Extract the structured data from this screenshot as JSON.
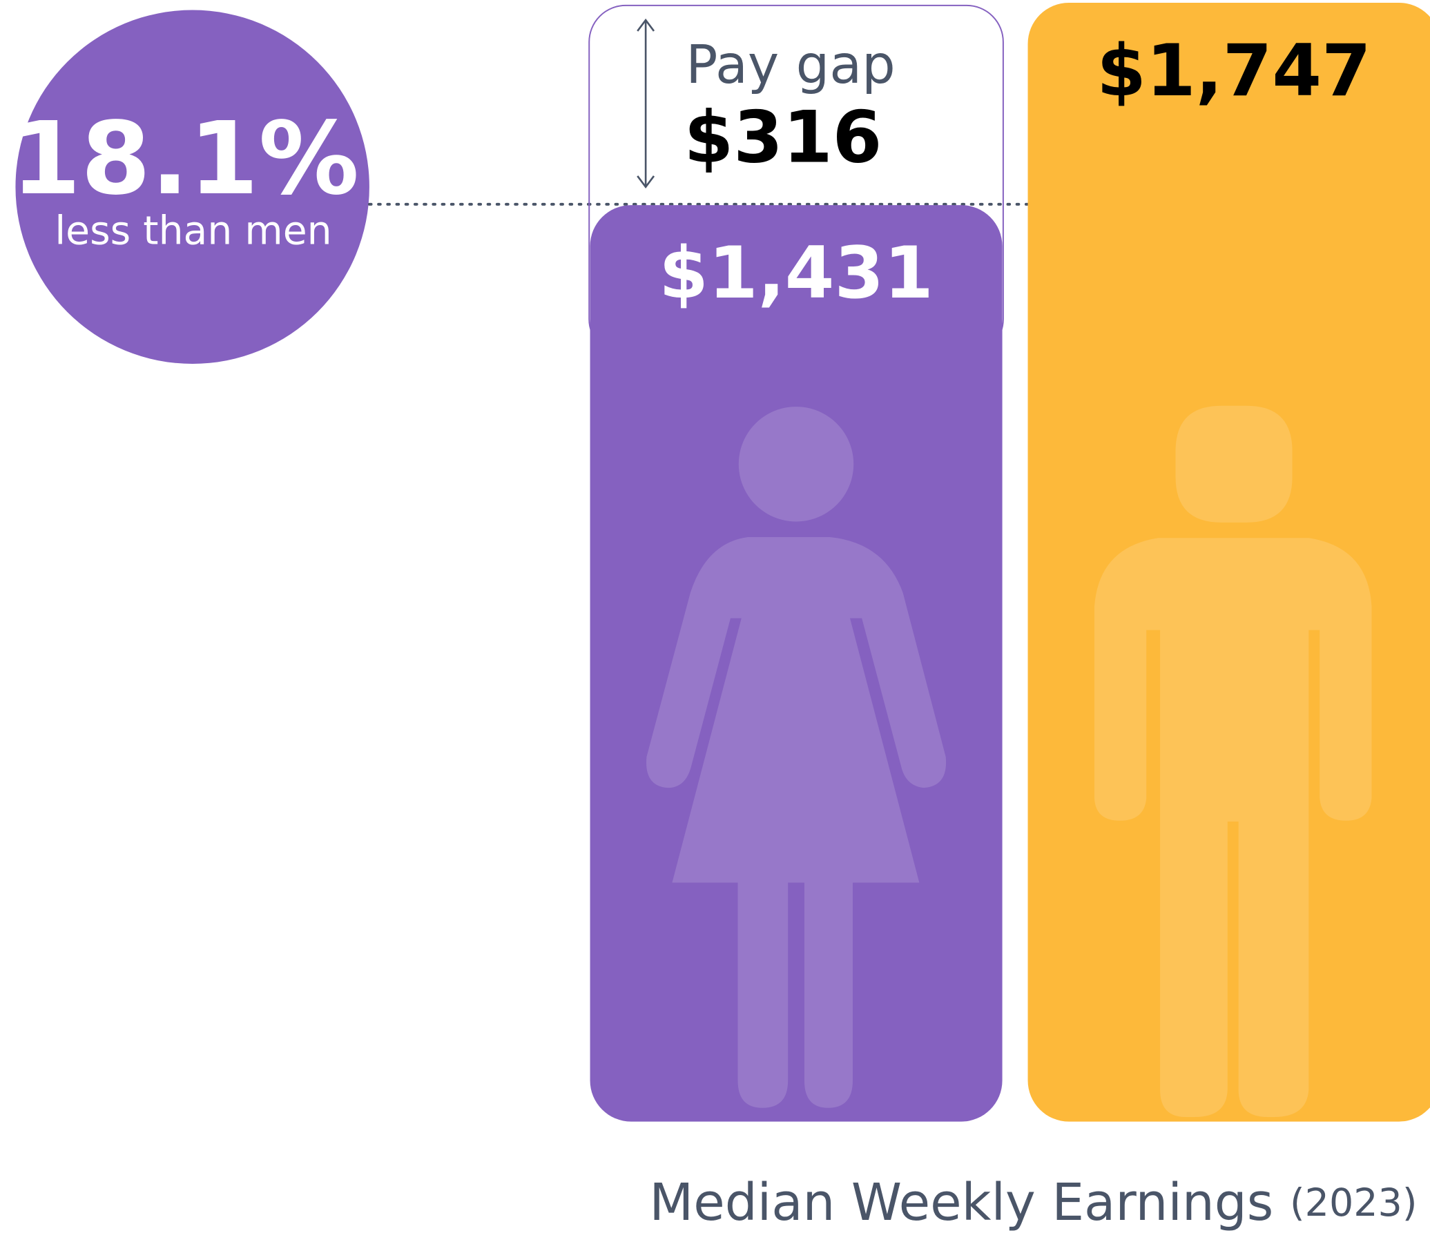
{
  "chart_data": {
    "type": "bar",
    "title": "Median Weekly Earnings",
    "subtitle": "(2023)",
    "values": [
      1431,
      1747
    ],
    "value_labels": [
      "$1,431",
      "$1,747"
    ],
    "colors": [
      "#8561c0",
      "#fdb93a"
    ],
    "gap": {
      "label": "Pay gap",
      "value": 316,
      "value_label": "$316"
    },
    "percent": {
      "value": 18.1,
      "value_label": "18.1%",
      "label": "less than men"
    }
  }
}
